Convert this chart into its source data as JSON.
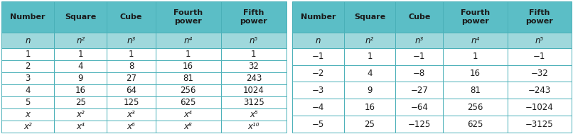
{
  "table1_headers": [
    "Number",
    "Square",
    "Cube",
    "Fourth\npower",
    "Fifth\npower"
  ],
  "table1_row2": [
    "n",
    "n²",
    "n³",
    "n⁴",
    "n⁵"
  ],
  "table1_data": [
    [
      "1",
      "1",
      "1",
      "1",
      "1"
    ],
    [
      "2",
      "4",
      "8",
      "16",
      "32"
    ],
    [
      "3",
      "9",
      "27",
      "81",
      "243"
    ],
    [
      "4",
      "16",
      "64",
      "256",
      "1024"
    ],
    [
      "5",
      "25",
      "125",
      "625",
      "3125"
    ],
    [
      "x",
      "x²",
      "x³",
      "x⁴",
      "x⁵"
    ],
    [
      "x²",
      "x⁴",
      "x⁶",
      "x⁸",
      "x¹⁰"
    ]
  ],
  "table2_headers": [
    "Number",
    "Square",
    "Cube",
    "Fourth\npower",
    "Fifth\npower"
  ],
  "table2_row2": [
    "n",
    "n²",
    "n³",
    "n⁴",
    "n⁵"
  ],
  "table2_data": [
    [
      "−1",
      "1",
      "−1",
      "1",
      "−1"
    ],
    [
      "−2",
      "4",
      "−8",
      "16",
      "−32"
    ],
    [
      "−3",
      "9",
      "−27",
      "81",
      "−243"
    ],
    [
      "−4",
      "16",
      "−64",
      "256",
      "−1024"
    ],
    [
      "−5",
      "25",
      "−125",
      "625",
      "−3125"
    ]
  ],
  "header_bg": "#5bbec6",
  "row2_bg": "#9fd8dc",
  "data_bg": "#ffffff",
  "border_color": "#4ab0b8",
  "text_color": "#1a1a1a",
  "gap_color": "#ffffff",
  "fig_bg": "#ffffff"
}
